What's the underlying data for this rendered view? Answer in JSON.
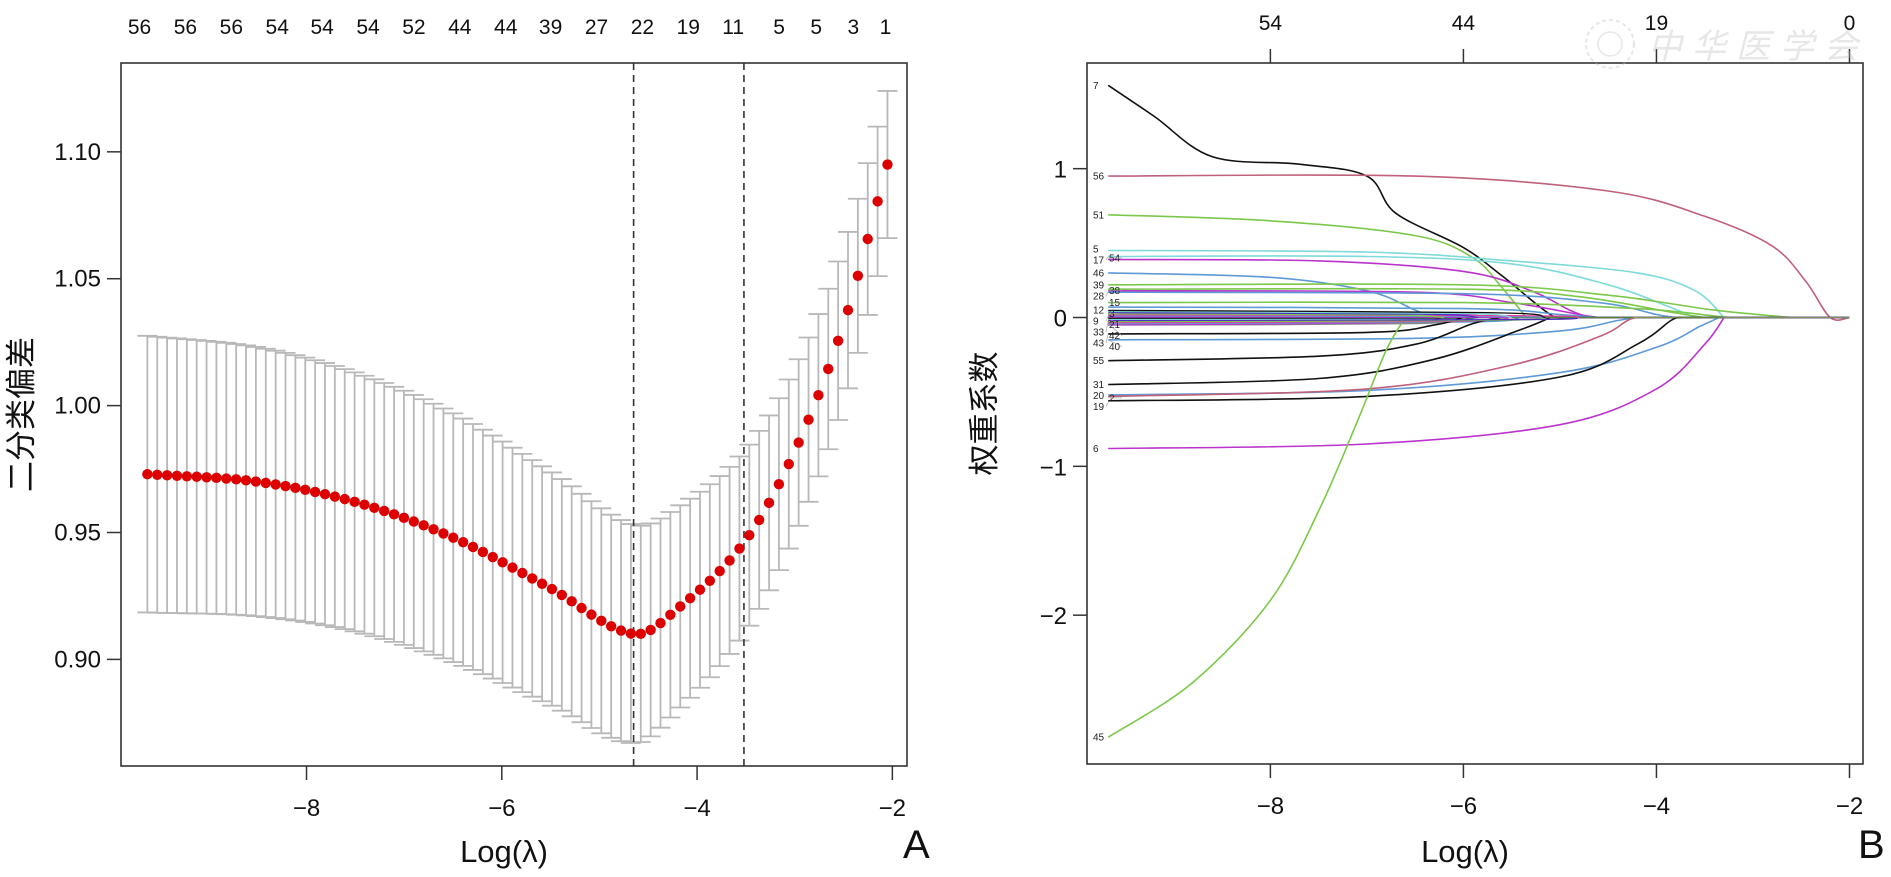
{
  "watermark": {
    "text": "中华医学会"
  },
  "chart_data": [
    {
      "panel": "A",
      "type": "scatter",
      "title": "",
      "xlabel": "Log(λ)",
      "ylabel": "二分类偏差",
      "xlim": [
        -9.9,
        -1.85
      ],
      "ylim": [
        0.858,
        1.135
      ],
      "xticks": [
        -8,
        -6,
        -4,
        -2
      ],
      "xtick_labels": [
        "−8",
        "−6",
        "−4",
        "−2"
      ],
      "yticks": [
        0.9,
        0.95,
        1.0,
        1.05,
        1.1
      ],
      "ytick_labels": [
        "0.90",
        "0.95",
        "1.00",
        "1.05",
        "1.10"
      ],
      "top_axis": {
        "positions": [
          -9.71,
          -9.24,
          -8.77,
          -8.3,
          -7.84,
          -7.37,
          -6.9,
          -6.43,
          -5.96,
          -5.5,
          -5.03,
          -4.56,
          -4.09,
          -3.63,
          -3.16,
          -2.78,
          -2.4,
          -2.07
        ],
        "labels": [
          "56",
          "56",
          "56",
          "54",
          "54",
          "54",
          "52",
          "44",
          "44",
          "39",
          "27",
          "22",
          "19",
          "11",
          "5",
          "5",
          "3",
          "1"
        ]
      },
      "vlines": [
        {
          "name": "lambda.min",
          "x": -4.65
        },
        {
          "name": "lambda.1se",
          "x": -3.52
        }
      ],
      "series": {
        "x_start": -9.63,
        "x_end": -2.05,
        "n_points": 76,
        "anchors": [
          {
            "x": -9.63,
            "mean": 0.973,
            "se": 0.0545
          },
          {
            "x": -8.5,
            "mean": 0.97,
            "se": 0.053
          },
          {
            "x": -7.5,
            "mean": 0.962,
            "se": 0.051
          },
          {
            "x": -6.5,
            "mean": 0.948,
            "se": 0.049
          },
          {
            "x": -5.5,
            "mean": 0.928,
            "se": 0.046
          },
          {
            "x": -4.65,
            "mean": 0.91,
            "se": 0.043
          },
          {
            "x": -4.2,
            "mean": 0.92,
            "se": 0.04
          },
          {
            "x": -3.52,
            "mean": 0.946,
            "se": 0.036
          },
          {
            "x": -3.0,
            "mean": 0.982,
            "se": 0.033
          },
          {
            "x": -2.5,
            "mean": 1.032,
            "se": 0.031
          },
          {
            "x": -2.05,
            "mean": 1.095,
            "se": 0.029
          }
        ]
      },
      "colors": {
        "point": "#dd0000",
        "errorbar": "#b8b8b8",
        "vline": "#333333"
      }
    },
    {
      "panel": "B",
      "type": "line",
      "title": "",
      "xlabel": "Log(λ)",
      "ylabel": "权重系数",
      "xlim": [
        -9.9,
        -1.86
      ],
      "ylim": [
        -3.0,
        1.71
      ],
      "xticks": [
        -8,
        -6,
        -4,
        -2
      ],
      "xtick_labels": [
        "−8",
        "−6",
        "−4",
        "−2"
      ],
      "yticks": [
        -2,
        -1,
        0,
        1
      ],
      "ytick_labels": [
        "−2",
        "−1",
        "0",
        "1"
      ],
      "top_axis": {
        "positions": [
          -8,
          -6,
          -4,
          -2
        ],
        "labels": [
          "54",
          "44",
          "19",
          "0"
        ]
      },
      "series": [
        {
          "name": "7",
          "color": "#111111",
          "points": [
            [
              -9.68,
              1.56
            ],
            [
              -9.2,
              1.35
            ],
            [
              -8.6,
              1.08
            ],
            [
              -7.7,
              1.03
            ],
            [
              -7.0,
              0.95
            ],
            [
              -6.7,
              0.7
            ],
            [
              -6.0,
              0.47
            ],
            [
              -5.6,
              0.28
            ],
            [
              -5.1,
              0.02
            ],
            [
              -4.9,
              0
            ]
          ]
        },
        {
          "name": "56",
          "color": "#c0607a",
          "points": [
            [
              -9.68,
              0.95
            ],
            [
              -6.5,
              0.95
            ],
            [
              -4.5,
              0.85
            ],
            [
              -3.5,
              0.68
            ],
            [
              -2.8,
              0.48
            ],
            [
              -2.45,
              0.24
            ],
            [
              -2.2,
              0
            ],
            [
              -2.0,
              0
            ]
          ]
        },
        {
          "name": "51",
          "color": "#7cc84a",
          "points": [
            [
              -9.68,
              0.69
            ],
            [
              -8.0,
              0.65
            ],
            [
              -6.5,
              0.55
            ],
            [
              -5.9,
              0.4
            ],
            [
              -5.6,
              0.2
            ],
            [
              -5.35,
              0
            ]
          ]
        },
        {
          "name": "5",
          "color": "#7fdada",
          "points": [
            [
              -9.68,
              0.45
            ],
            [
              -7.0,
              0.44
            ],
            [
              -5.5,
              0.38
            ],
            [
              -4.2,
              0.3
            ],
            [
              -3.6,
              0.18
            ],
            [
              -3.3,
              0
            ]
          ]
        },
        {
          "name": "17",
          "color": "#7fdada",
          "points": [
            [
              -9.68,
              0.41
            ],
            [
              -7.0,
              0.41
            ],
            [
              -5.5,
              0.36
            ],
            [
              -4.5,
              0.22
            ],
            [
              -3.9,
              0.08
            ],
            [
              -3.6,
              0
            ]
          ]
        },
        {
          "name": "54",
          "color": "#bb33cc",
          "points": [
            [
              -9.68,
              0.39
            ],
            [
              -7.5,
              0.38
            ],
            [
              -6.0,
              0.31
            ],
            [
              -5.3,
              0.18
            ],
            [
              -4.9,
              0.05
            ],
            [
              -4.7,
              0
            ]
          ]
        },
        {
          "name": "46",
          "color": "#5e9ad6",
          "points": [
            [
              -9.68,
              0.3
            ],
            [
              -8.0,
              0.27
            ],
            [
              -7.0,
              0.18
            ],
            [
              -6.5,
              0.05
            ],
            [
              -6.3,
              0
            ]
          ]
        },
        {
          "name": "39",
          "color": "#7cc84a",
          "points": [
            [
              -9.68,
              0.22
            ],
            [
              -6.0,
              0.22
            ],
            [
              -4.5,
              0.15
            ],
            [
              -3.4,
              0.05
            ],
            [
              -2.6,
              0
            ]
          ]
        },
        {
          "name": "38",
          "color": "#7cc84a",
          "points": [
            [
              -9.68,
              0.19
            ],
            [
              -6.0,
              0.19
            ],
            [
              -4.8,
              0.14
            ],
            [
              -3.8,
              0.03
            ],
            [
              -3.5,
              0
            ]
          ]
        },
        {
          "name": "28",
          "color": "#bb33cc",
          "points": [
            [
              -9.68,
              0.18
            ],
            [
              -6.5,
              0.17
            ],
            [
              -5.5,
              0.1
            ],
            [
              -4.8,
              0.02
            ],
            [
              -4.6,
              0
            ]
          ]
        },
        {
          "name": "26",
          "color": "#5e9ad6",
          "points": [
            [
              -9.68,
              0.17
            ],
            [
              -6.0,
              0.16
            ],
            [
              -4.6,
              0.1
            ],
            [
              -4.0,
              0.02
            ],
            [
              -3.8,
              0
            ]
          ]
        },
        {
          "name": "15",
          "color": "#7cc84a",
          "points": [
            [
              -9.68,
              0.1
            ],
            [
              -6.0,
              0.1
            ],
            [
              -4.2,
              0.06
            ],
            [
              -3.4,
              0.01
            ],
            [
              -3.2,
              0
            ]
          ]
        },
        {
          "name": "12",
          "color": "#5e9ad6",
          "points": [
            [
              -9.68,
              0.07
            ],
            [
              -6.0,
              0.06
            ],
            [
              -5.0,
              0.02
            ],
            [
              -4.6,
              0
            ]
          ]
        },
        {
          "name": "3",
          "color": "#bb33cc",
          "points": [
            [
              -9.68,
              0.04
            ],
            [
              -6.5,
              0.03
            ],
            [
              -5.8,
              0.01
            ],
            [
              -5.5,
              0
            ]
          ]
        },
        {
          "name": "9",
          "color": "#e0409f",
          "points": [
            [
              -9.68,
              0.02
            ],
            [
              -7.0,
              0.02
            ],
            [
              -6.3,
              0
            ]
          ]
        },
        {
          "name": "21",
          "color": "#4a2fc0",
          "points": [
            [
              -9.68,
              0.01
            ],
            [
              -6.0,
              0.01
            ],
            [
              -5.5,
              0
            ]
          ]
        },
        {
          "name": "33",
          "color": "#7fdada",
          "points": [
            [
              -9.68,
              -0.01
            ],
            [
              -6.5,
              -0.01
            ],
            [
              -6.0,
              0
            ]
          ]
        },
        {
          "name": "24",
          "color": "#bb33cc",
          "points": [
            [
              -9.68,
              -0.02
            ],
            [
              -7.0,
              -0.02
            ],
            [
              -6.4,
              0
            ]
          ]
        },
        {
          "name": "48",
          "color": "#5e9ad6",
          "points": [
            [
              -9.68,
              -0.04
            ],
            [
              -6.0,
              -0.03
            ],
            [
              -5.4,
              0
            ]
          ]
        },
        {
          "name": "42",
          "color": "#888888",
          "points": [
            [
              -9.68,
              -0.05
            ],
            [
              -6.5,
              -0.04
            ],
            [
              -5.9,
              0
            ]
          ]
        },
        {
          "name": "43",
          "color": "#111111",
          "points": [
            [
              -9.68,
              -0.11
            ],
            [
              -7.0,
              -0.1
            ],
            [
              -6.3,
              -0.05
            ],
            [
              -6.0,
              0
            ]
          ]
        },
        {
          "name": "40",
          "color": "#5e9ad6",
          "points": [
            [
              -9.68,
              -0.15
            ],
            [
              -6.5,
              -0.14
            ],
            [
              -5.0,
              -0.09
            ],
            [
              -4.4,
              -0.02
            ],
            [
              -4.2,
              0
            ]
          ]
        },
        {
          "name": "55",
          "color": "#111111",
          "points": [
            [
              -9.68,
              -0.29
            ],
            [
              -7.5,
              -0.26
            ],
            [
              -6.5,
              -0.18
            ],
            [
              -5.9,
              -0.04
            ],
            [
              -5.6,
              0
            ]
          ]
        },
        {
          "name": "31",
          "color": "#111111",
          "points": [
            [
              -9.68,
              -0.45
            ],
            [
              -7.5,
              -0.41
            ],
            [
              -6.3,
              -0.28
            ],
            [
              -5.4,
              -0.08
            ],
            [
              -5.1,
              0
            ]
          ]
        },
        {
          "name": "20",
          "color": "#5e9ad6",
          "points": [
            [
              -9.68,
              -0.52
            ],
            [
              -7.0,
              -0.49
            ],
            [
              -5.0,
              -0.37
            ],
            [
              -4.0,
              -0.2
            ],
            [
              -3.55,
              -0.06
            ],
            [
              -3.35,
              0
            ]
          ]
        },
        {
          "name": "2",
          "color": "#c0607a",
          "points": [
            [
              -9.68,
              -0.53
            ],
            [
              -7.0,
              -0.48
            ],
            [
              -5.5,
              -0.32
            ],
            [
              -4.6,
              -0.13
            ],
            [
              -4.3,
              -0.02
            ],
            [
              -4.2,
              0
            ]
          ]
        },
        {
          "name": "19",
          "color": "#111111",
          "points": [
            [
              -9.68,
              -0.56
            ],
            [
              -7.0,
              -0.53
            ],
            [
              -5.0,
              -0.4
            ],
            [
              -4.2,
              -0.18
            ],
            [
              -3.85,
              -0.02
            ],
            [
              -3.75,
              0
            ]
          ]
        },
        {
          "name": "6",
          "color": "#bb33cc",
          "points": [
            [
              -9.68,
              -0.88
            ],
            [
              -7.0,
              -0.85
            ],
            [
              -5.0,
              -0.72
            ],
            [
              -4.0,
              -0.48
            ],
            [
              -3.5,
              -0.18
            ],
            [
              -3.3,
              0
            ]
          ]
        },
        {
          "name": "45",
          "color": "#7cc84a",
          "points": [
            [
              -9.68,
              -2.82
            ],
            [
              -8.8,
              -2.45
            ],
            [
              -8.0,
              -1.9
            ],
            [
              -7.5,
              -1.3
            ],
            [
              -7.1,
              -0.7
            ],
            [
              -6.8,
              -0.22
            ],
            [
              -6.6,
              0
            ]
          ]
        }
      ],
      "left_labels": [
        {
          "text": "7",
          "y": 1.56
        },
        {
          "text": "56",
          "y": 0.95
        },
        {
          "text": "51",
          "y": 0.69
        },
        {
          "text": "5",
          "y": 0.46
        },
        {
          "text": "54",
          "y": 0.4
        },
        {
          "text": "17",
          "y": 0.41
        },
        {
          "text": "46",
          "y": 0.3
        },
        {
          "text": "39",
          "y": 0.22
        },
        {
          "text": "38",
          "y": 0.18
        },
        {
          "text": "28",
          "y": 0.17
        },
        {
          "text": "15",
          "y": 0.1
        },
        {
          "text": "12",
          "y": 0.05
        },
        {
          "text": "3",
          "y": 0.03
        },
        {
          "text": "9",
          "y": 0.01
        },
        {
          "text": "21",
          "y": -0.01
        },
        {
          "text": "33",
          "y": -0.02
        },
        {
          "text": "42",
          "y": -0.04
        },
        {
          "text": "43",
          "y": -0.11
        },
        {
          "text": "40",
          "y": -0.15
        },
        {
          "text": "55",
          "y": -0.29
        },
        {
          "text": "31",
          "y": -0.45
        },
        {
          "text": "20",
          "y": -0.52
        },
        {
          "text": "2",
          "y": -0.54
        },
        {
          "text": "19",
          "y": -0.57
        },
        {
          "text": "6",
          "y": -0.88
        },
        {
          "text": "45",
          "y": -2.82
        }
      ]
    }
  ],
  "panels": {
    "a_letter": "A",
    "b_letter": "B"
  }
}
